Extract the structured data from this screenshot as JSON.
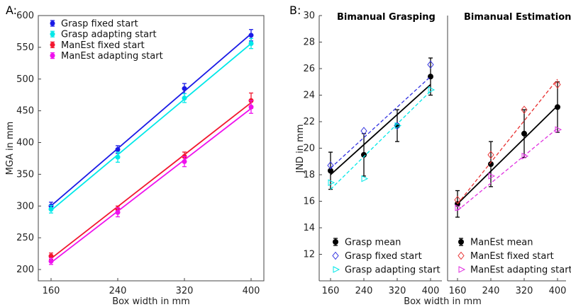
{
  "chart_data": [
    {
      "type": "line",
      "panel_label": "A:",
      "xlabel": "Box width in mm",
      "ylabel": "MGA in mm",
      "xlim": [
        160,
        400
      ],
      "ylim": [
        200,
        600
      ],
      "x_ticks": [
        160,
        240,
        320,
        400
      ],
      "y_ticks": [
        200,
        250,
        300,
        350,
        400,
        450,
        500,
        550,
        600
      ],
      "legend_position": "top-left",
      "series": [
        {
          "name": "Grasp fixed start",
          "color": "#1a1ae6",
          "x": [
            160,
            240,
            320,
            400
          ],
          "values": [
            300,
            389,
            485,
            569
          ],
          "errors": [
            6,
            6,
            8,
            9
          ]
        },
        {
          "name": "Grasp adapting start",
          "color": "#00e8e8",
          "x": [
            160,
            240,
            320,
            400
          ],
          "values": [
            295,
            377,
            470,
            556
          ],
          "errors": [
            6,
            8,
            7,
            8
          ]
        },
        {
          "name": "ManEst fixed start",
          "color": "#f2162e",
          "x": [
            160,
            240,
            320,
            400
          ],
          "values": [
            221,
            295,
            378,
            466
          ],
          "errors": [
            5,
            5,
            7,
            12
          ]
        },
        {
          "name": "ManEst adapting start",
          "color": "#ee11ee",
          "x": [
            160,
            240,
            320,
            400
          ],
          "values": [
            213,
            290,
            370,
            456
          ],
          "errors": [
            5,
            7,
            8,
            10
          ]
        }
      ]
    },
    {
      "type": "line",
      "panel_label": "B:",
      "xlabel": "Box width in mm",
      "ylabel": "JND in mm",
      "ylim": [
        10,
        30
      ],
      "y_ticks": [
        12,
        14,
        16,
        18,
        20,
        22,
        24,
        26,
        28,
        30
      ],
      "subplots": [
        {
          "title": "Bimanual Grasping",
          "x_ticks": [
            160,
            240,
            320,
            400
          ],
          "legend_position": "bottom-left",
          "series": [
            {
              "name": "Grasp mean",
              "color": "#000000",
              "marker": "circle",
              "x": [
                160,
                240,
                320,
                400
              ],
              "values": [
                18.3,
                19.5,
                21.7,
                25.4
              ],
              "errors": [
                1.4,
                1.6,
                1.2,
                1.4
              ],
              "fit": [
                18.0,
                24.8
              ]
            },
            {
              "name": "Grasp fixed start",
              "color": "#3030e0",
              "marker": "diamond",
              "x": [
                160,
                240,
                320,
                400
              ],
              "values": [
                18.7,
                21.3,
                21.7,
                26.3
              ],
              "fit": [
                18.5,
                25.4
              ]
            },
            {
              "name": "Grasp adapting start",
              "color": "#00e8e8",
              "marker": "triangle",
              "x": [
                160,
                240,
                320,
                400
              ],
              "values": [
                17.4,
                17.7,
                21.7,
                24.4
              ],
              "fit": [
                16.9,
                24.3
              ]
            }
          ]
        },
        {
          "title": "Bimanual Estimation",
          "x_ticks": [
            160,
            240,
            320,
            400
          ],
          "legend_position": "bottom-left",
          "series": [
            {
              "name": "ManEst mean",
              "color": "#000000",
              "marker": "circle",
              "x": [
                160,
                240,
                320,
                400
              ],
              "values": [
                15.8,
                18.8,
                21.1,
                23.1
              ],
              "errors": [
                1.0,
                1.7,
                1.8,
                1.9
              ],
              "fit": [
                15.8,
                23.2
              ]
            },
            {
              "name": "ManEst fixed start",
              "color": "#e83030",
              "marker": "diamond",
              "x": [
                160,
                240,
                320,
                400
              ],
              "values": [
                16.1,
                19.5,
                22.9,
                24.8
              ],
              "fit": [
                15.8,
                25.2
              ]
            },
            {
              "name": "ManEst adapting start",
              "color": "#e030e0",
              "marker": "triangle",
              "x": [
                160,
                240,
                320,
                400
              ],
              "values": [
                15.5,
                17.9,
                19.4,
                21.4
              ],
              "fit": [
                15.3,
                21.5
              ]
            }
          ]
        }
      ]
    }
  ]
}
